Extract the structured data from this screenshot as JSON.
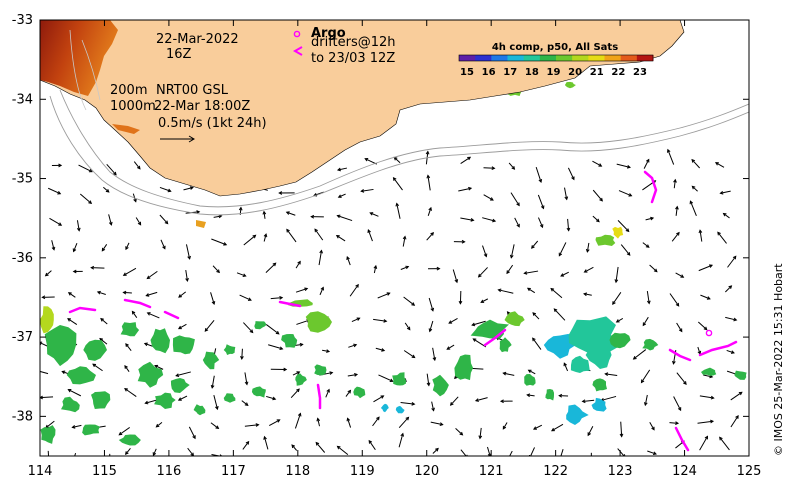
{
  "map": {
    "x_axis": {
      "min": 114,
      "max": 125,
      "ticks": [
        "114",
        "115",
        "116",
        "117",
        "118",
        "119",
        "120",
        "121",
        "122",
        "123",
        "124",
        "125"
      ]
    },
    "y_axis": {
      "min": -38.5,
      "max": -33,
      "ticks": [
        "-33",
        "-34",
        "-35",
        "-36",
        "-37",
        "-38"
      ]
    },
    "land_color": "#f9cd9b",
    "sst_colors": [
      "#5e1fa8",
      "#2c2fd0",
      "#1e78e6",
      "#19b7d9",
      "#22c69a",
      "#2fb548",
      "#6cc82e",
      "#b4d81e",
      "#e6dc14",
      "#f0a419",
      "#e45a1a",
      "#b41512"
    ],
    "argo_color": "#ff00ff"
  },
  "annotations": {
    "date": "22-Mar-2022",
    "hour": "16Z",
    "depth_top": "200m",
    "depth_bottom": "1000m",
    "product": "NRT00 GSL",
    "product_time": "22-Mar 18:00Z",
    "scale_label": "0.5m/s (1kt 24h)",
    "argo_label": "Argo",
    "drifters_label": "drifters@12h",
    "drifters_to": "to 23/03 12Z"
  },
  "colorbar": {
    "title": "4h comp, p50, All Sats",
    "labels": [
      "15",
      "16",
      "17",
      "18",
      "19",
      "20",
      "21",
      "22",
      "23"
    ]
  },
  "credit": "© IMOS 25-Mar-2022 15:31 Hobart"
}
